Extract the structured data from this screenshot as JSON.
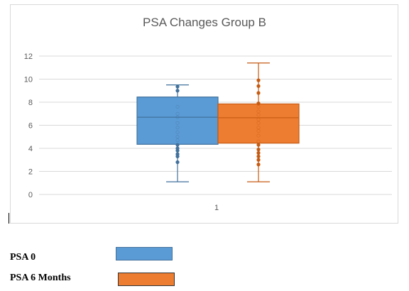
{
  "chart_data": {
    "type": "box",
    "title": "PSA Changes Group B",
    "categories": [
      "1"
    ],
    "ylim": [
      0,
      12
    ],
    "yticks": [
      0,
      2,
      4,
      6,
      8,
      10,
      12
    ],
    "grid": true,
    "series": [
      {
        "name": "PSA 0",
        "color": "#5b9bd5",
        "stroke": "#41719c",
        "min": 1.1,
        "q1": 4.35,
        "median": 6.7,
        "q3": 8.45,
        "max": 9.5,
        "points": [
          9.35,
          9.0,
          7.6,
          7.0,
          6.7,
          6.2,
          5.8,
          5.4,
          5.0,
          4.7,
          4.3,
          4.0,
          3.8,
          3.5,
          3.3,
          2.8
        ]
      },
      {
        "name": "PSA 6 Months",
        "color": "#ed7d31",
        "stroke": "#c55a11",
        "min": 1.1,
        "q1": 4.45,
        "median": 6.65,
        "q3": 7.85,
        "max": 11.4,
        "points": [
          9.9,
          9.4,
          8.8,
          7.9,
          7.6,
          7.2,
          6.9,
          6.5,
          6.2,
          5.8,
          5.5,
          5.1,
          4.6,
          4.3,
          3.9,
          3.6,
          3.3,
          3.0,
          2.6
        ]
      }
    ]
  },
  "legend": {
    "items": [
      {
        "label": "PSA 0",
        "color": "#5b9bd5"
      },
      {
        "label": "PSA 6 Months",
        "color": "#ed7d31"
      }
    ]
  }
}
